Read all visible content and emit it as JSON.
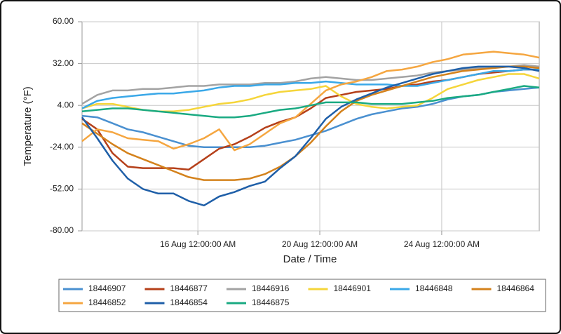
{
  "chart_data": {
    "type": "line",
    "x_label": "Date / Time",
    "y_label": "Temperature (°F)",
    "x": [
      12.2,
      12.7,
      13.2,
      13.7,
      14.2,
      14.7,
      15.2,
      15.7,
      16.2,
      16.7,
      17.2,
      17.7,
      18.2,
      18.7,
      19.2,
      19.7,
      20.2,
      20.7,
      21.2,
      21.7,
      22.2,
      22.7,
      23.2,
      23.7,
      24.2,
      24.7,
      25.2,
      25.7,
      26.2,
      26.7,
      27.2
    ],
    "xlim": [
      12.2,
      27.2
    ],
    "xticks": [
      {
        "value": 16,
        "label": "16 Aug 12:00:00 AM"
      },
      {
        "value": 20,
        "label": "20 Aug 12:00:00 AM"
      },
      {
        "value": 24,
        "label": "24 Aug 12:00:00 AM"
      }
    ],
    "ylim": [
      -80,
      60
    ],
    "yticks": [
      {
        "value": 60,
        "label": "60.00"
      },
      {
        "value": 32,
        "label": "32.00"
      },
      {
        "value": 4,
        "label": "4.00"
      },
      {
        "value": -24,
        "label": "-24.00"
      },
      {
        "value": -52,
        "label": "-52.00"
      },
      {
        "value": -80,
        "label": "-80.00"
      }
    ],
    "grid": true,
    "legend": "bottom",
    "series": [
      {
        "name": "18446907",
        "color": "#4a90d0",
        "values": [
          -3,
          -4,
          -8,
          -12,
          -14,
          -17,
          -20,
          -23,
          -24,
          -24,
          -24,
          -24,
          -23,
          -21,
          -19,
          -16,
          -13,
          -9,
          -5,
          -2,
          0,
          2,
          3,
          5,
          8,
          10,
          11,
          13,
          14,
          15,
          16
        ]
      },
      {
        "name": "18446877",
        "color": "#b5401a",
        "values": [
          -5,
          -12,
          -28,
          -37,
          -38,
          -38,
          -38,
          -39,
          -32,
          -25,
          -22,
          -17,
          -11,
          -7,
          -4,
          2,
          9,
          11,
          13,
          14,
          15,
          17,
          18,
          20,
          21,
          23,
          25,
          26,
          27,
          28,
          28
        ]
      },
      {
        "name": "18446916",
        "color": "#a3a3a3",
        "values": [
          5,
          11,
          14,
          14,
          15,
          15,
          16,
          17,
          17,
          18,
          18,
          18,
          19,
          19,
          20,
          22,
          23,
          22,
          21,
          21,
          22,
          23,
          24,
          26,
          27,
          28,
          29,
          30,
          30,
          31,
          30
        ]
      },
      {
        "name": "18446901",
        "color": "#f5d53a",
        "values": [
          2,
          5,
          5,
          3,
          1,
          0,
          0,
          1,
          3,
          5,
          6,
          8,
          11,
          13,
          14,
          15,
          17,
          10,
          5,
          3,
          2,
          3,
          4,
          9,
          15,
          18,
          21,
          23,
          25,
          25,
          22
        ]
      },
      {
        "name": "18446848",
        "color": "#3aa8e8",
        "values": [
          2,
          7,
          9,
          10,
          11,
          12,
          12,
          13,
          14,
          16,
          17,
          17,
          18,
          18,
          19,
          19,
          20,
          19,
          18,
          18,
          18,
          17,
          17,
          19,
          21,
          23,
          25,
          27,
          27,
          28,
          28
        ]
      },
      {
        "name": "18446864",
        "color": "#d4821c",
        "values": [
          -8,
          -15,
          -22,
          -28,
          -32,
          -36,
          -40,
          -44,
          -46,
          -46,
          -46,
          -45,
          -42,
          -37,
          -30,
          -21,
          -10,
          0,
          7,
          11,
          14,
          17,
          20,
          23,
          25,
          27,
          28,
          29,
          30,
          30,
          29
        ]
      },
      {
        "name": "18446852",
        "color": "#f5a640",
        "values": [
          -20,
          -12,
          -14,
          -18,
          -19,
          -20,
          -25,
          -22,
          -18,
          -12,
          -26,
          -22,
          -15,
          -8,
          -4,
          5,
          14,
          18,
          20,
          23,
          27,
          28,
          30,
          33,
          35,
          38,
          39,
          40,
          39,
          38,
          36
        ]
      },
      {
        "name": "18446854",
        "color": "#1f5fa8",
        "values": [
          -4,
          -18,
          -33,
          -45,
          -52,
          -55,
          -55,
          -60,
          -63,
          -57,
          -54,
          -50,
          -47,
          -38,
          -30,
          -18,
          -5,
          3,
          8,
          12,
          16,
          19,
          22,
          25,
          27,
          29,
          30,
          30,
          30,
          29,
          27
        ]
      },
      {
        "name": "18446875",
        "color": "#1aaa82",
        "values": [
          0,
          1,
          2,
          2,
          1,
          0,
          -1,
          -2,
          -3,
          -4,
          -4,
          -3,
          -1,
          1,
          2,
          4,
          6,
          6,
          6,
          5,
          5,
          5,
          6,
          7,
          9,
          10,
          11,
          13,
          15,
          17,
          16
        ]
      }
    ]
  }
}
